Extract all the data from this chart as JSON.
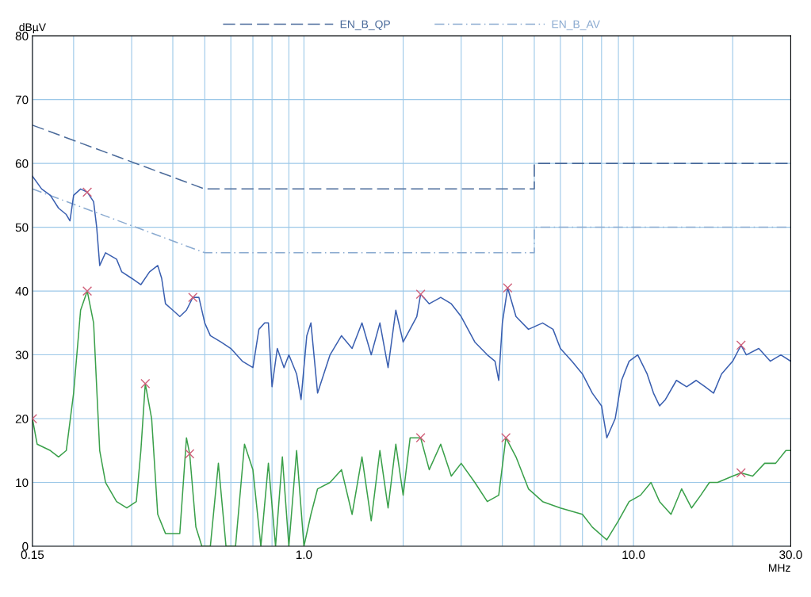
{
  "chart_data": {
    "type": "line",
    "xlabel": "MHz",
    "ylabel": "dBµV",
    "log": "x",
    "grid": true,
    "legend": "top",
    "xlim": [
      0.15,
      30
    ],
    "ylim": [
      0,
      80
    ],
    "xticks": [
      0.15,
      {
        "value": 0.2,
        "label": null
      },
      {
        "value": 0.3,
        "label": null
      },
      {
        "value": 0.4,
        "label": null
      },
      {
        "value": 0.5,
        "label": null
      },
      {
        "value": 0.6,
        "label": null
      },
      {
        "value": 0.7,
        "label": null
      },
      {
        "value": 0.8,
        "label": null
      },
      {
        "value": 0.9,
        "label": null
      },
      {
        "value": 1,
        "label": "1.0"
      },
      {
        "value": 2,
        "label": null
      },
      {
        "value": 3,
        "label": null
      },
      {
        "value": 4,
        "label": null
      },
      {
        "value": 5,
        "label": null
      },
      {
        "value": 6,
        "label": null
      },
      {
        "value": 7,
        "label": null
      },
      {
        "value": 8,
        "label": null
      },
      {
        "value": 9,
        "label": null
      },
      {
        "value": 10,
        "label": "10.0"
      },
      {
        "value": 20,
        "label": null
      },
      {
        "value": 30,
        "label": "30.0"
      }
    ],
    "yticks": [
      0,
      10,
      20,
      30,
      40,
      50,
      60,
      70,
      80
    ],
    "series": [
      {
        "name": "EN_B_QP",
        "color": "#4a6a9a",
        "line_style": "dashed",
        "x": [
          0.15,
          0.5,
          5,
          5,
          30
        ],
        "values": [
          66,
          56,
          56,
          60,
          60
        ]
      },
      {
        "name": "EN_B_AV",
        "color": "#8aaad0",
        "line_style": "dashdot",
        "x": [
          0.15,
          0.5,
          5,
          5,
          30
        ],
        "values": [
          56,
          46,
          46,
          50,
          50
        ]
      },
      {
        "color": "#3a5fb0",
        "line_style": "solid",
        "x": [
          0.15,
          0.16,
          0.17,
          0.18,
          0.19,
          0.195,
          0.2,
          0.21,
          0.22,
          0.23,
          0.235,
          0.24,
          0.25,
          0.27,
          0.28,
          0.3,
          0.32,
          0.34,
          0.36,
          0.37,
          0.38,
          0.4,
          0.42,
          0.44,
          0.46,
          0.48,
          0.5,
          0.52,
          0.56,
          0.6,
          0.65,
          0.7,
          0.73,
          0.76,
          0.78,
          0.8,
          0.83,
          0.87,
          0.9,
          0.95,
          0.98,
          1.02,
          1.05,
          1.1,
          1.2,
          1.3,
          1.4,
          1.5,
          1.6,
          1.7,
          1.8,
          1.9,
          2.0,
          2.2,
          2.26,
          2.4,
          2.6,
          2.8,
          3.0,
          3.3,
          3.6,
          3.8,
          3.9,
          4.0,
          4.15,
          4.4,
          4.8,
          5.3,
          5.7,
          6.0,
          6.5,
          7.0,
          7.5,
          8.0,
          8.3,
          8.8,
          9.2,
          9.7,
          10.3,
          11,
          11.5,
          12,
          12.5,
          13.5,
          14.5,
          15.5,
          16.5,
          17.5,
          18.5,
          20,
          21.2,
          22,
          24,
          26,
          28,
          30
        ],
        "values": [
          58,
          56,
          55,
          53,
          52,
          51,
          55,
          56,
          55.5,
          54,
          50,
          44,
          46,
          45,
          43,
          42,
          41,
          43,
          44,
          42,
          38,
          37,
          36,
          37,
          39,
          39,
          35,
          33,
          32,
          31,
          29,
          28,
          34,
          35,
          35,
          25,
          31,
          28,
          30,
          27,
          23,
          33,
          35,
          24,
          30,
          33,
          31,
          35,
          30,
          35,
          28,
          37,
          32,
          36,
          39.5,
          38,
          39,
          38,
          36,
          32,
          30,
          29,
          26,
          35,
          40.5,
          36,
          34,
          35,
          34,
          31,
          29,
          27,
          24,
          22,
          17,
          20,
          26,
          29,
          30,
          27,
          24,
          22,
          23,
          26,
          25,
          26,
          25,
          24,
          27,
          29,
          31.5,
          30,
          31,
          29,
          30,
          29
        ]
      },
      {
        "color": "#3aa04a",
        "line_style": "solid",
        "x": [
          0.15,
          0.155,
          0.17,
          0.18,
          0.19,
          0.2,
          0.21,
          0.22,
          0.23,
          0.24,
          0.25,
          0.27,
          0.29,
          0.31,
          0.32,
          0.33,
          0.345,
          0.36,
          0.38,
          0.42,
          0.44,
          0.45,
          0.47,
          0.49,
          0.52,
          0.55,
          0.58,
          0.62,
          0.66,
          0.7,
          0.74,
          0.78,
          0.82,
          0.86,
          0.9,
          0.95,
          1.0,
          1.05,
          1.1,
          1.2,
          1.3,
          1.4,
          1.5,
          1.6,
          1.7,
          1.8,
          1.9,
          2.0,
          2.1,
          2.26,
          2.4,
          2.6,
          2.8,
          3.0,
          3.3,
          3.6,
          3.9,
          4.1,
          4.4,
          4.8,
          5.3,
          6,
          7,
          7.5,
          8.3,
          9,
          9.7,
          10.5,
          11.3,
          12,
          13,
          14,
          15,
          16,
          17,
          18,
          20,
          21.2,
          23,
          25,
          27,
          29,
          30
        ],
        "values": [
          20,
          16,
          15,
          14,
          15,
          24,
          37,
          40,
          35,
          15,
          10,
          7,
          6,
          7,
          15,
          25.5,
          20,
          5,
          2,
          2,
          17,
          14.5,
          3,
          0,
          0,
          13,
          0,
          0,
          16,
          12,
          0,
          13,
          0,
          14,
          0,
          15,
          0,
          5,
          9,
          10,
          12,
          5,
          14,
          4,
          15,
          6,
          16,
          8,
          17,
          17,
          12,
          16,
          11,
          13,
          10,
          7,
          8,
          17,
          14,
          9,
          7,
          6,
          5,
          3,
          1,
          4,
          7,
          8,
          10,
          7,
          5,
          9,
          6,
          8,
          10,
          10,
          11,
          11.5,
          11,
          13,
          13,
          15,
          15
        ]
      },
      {
        "type": "scatter",
        "marker": "cross",
        "color": "#d0607a",
        "x": [
          0.22,
          0.46,
          2.26,
          4.15,
          21.2
        ],
        "values": [
          55.5,
          39,
          39.5,
          40.5,
          31.5
        ]
      },
      {
        "type": "scatter",
        "marker": "cross",
        "color": "#d0607a",
        "x": [
          0.15,
          0.22,
          0.33,
          0.45,
          2.26,
          4.1,
          21.2
        ],
        "values": [
          20,
          40,
          25.5,
          14.5,
          17,
          17,
          11.5
        ]
      }
    ]
  }
}
